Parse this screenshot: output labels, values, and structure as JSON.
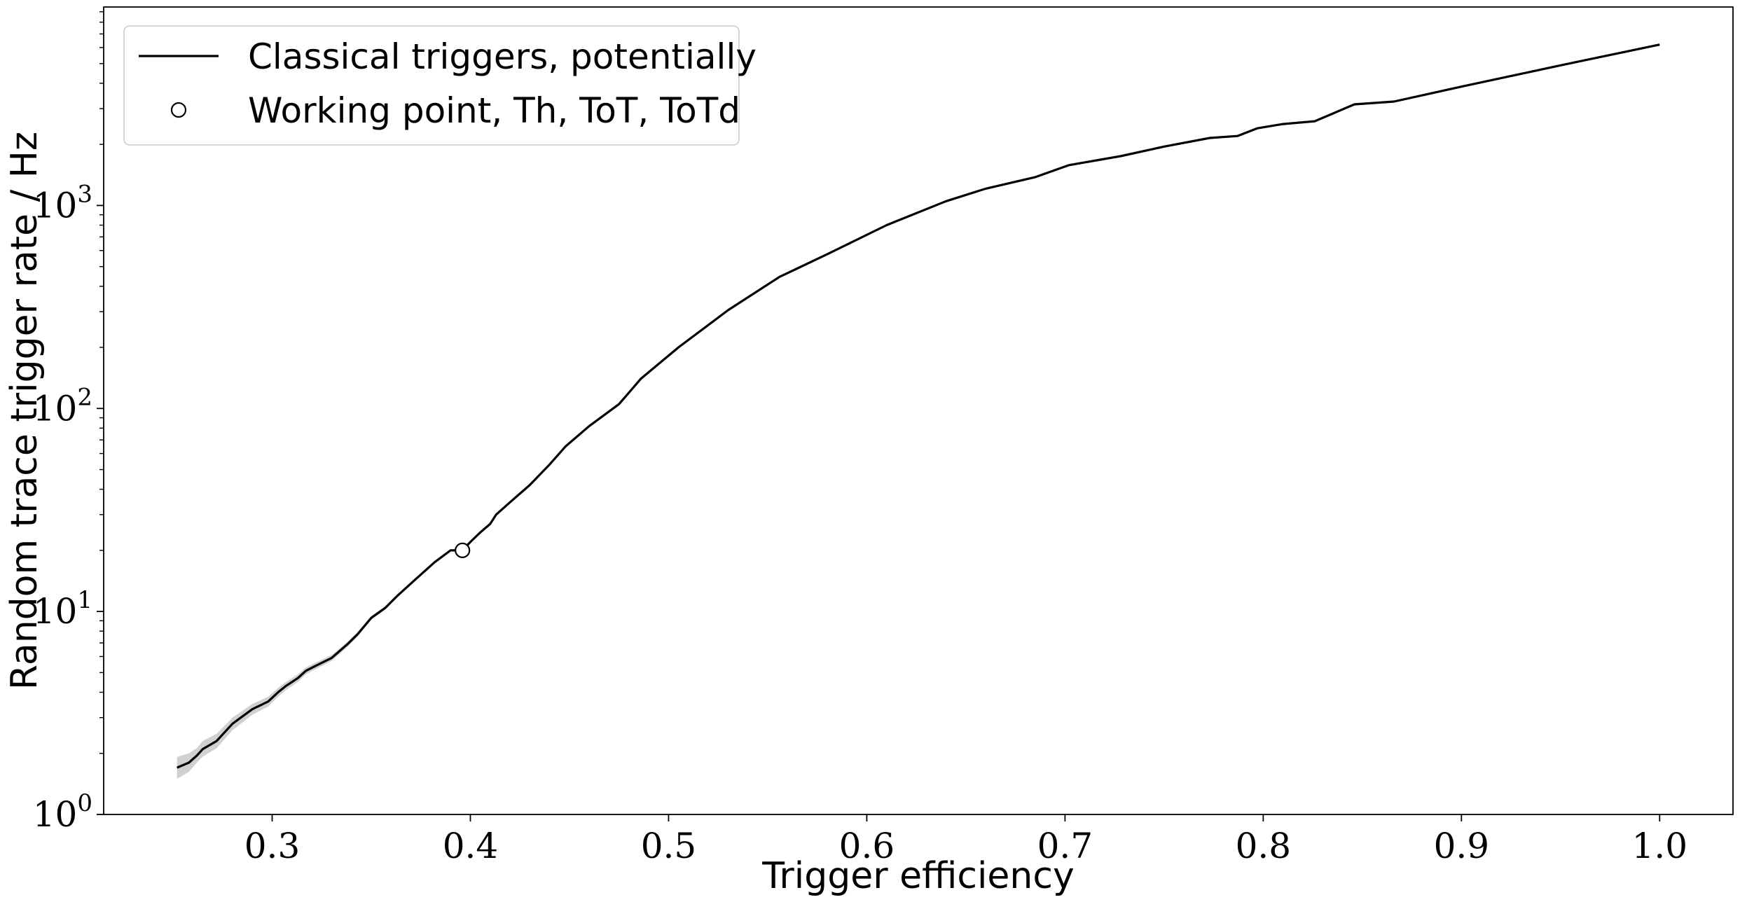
{
  "chart_data": {
    "type": "line",
    "xlabel": "Trigger efficiency",
    "ylabel": "Random trace trigger rate / Hz",
    "xlim": [
      0.215,
      1.037
    ],
    "ylim": [
      1,
      9500
    ],
    "yscale": "log",
    "grid": false,
    "legend_position": "top-left",
    "x_ticks": [
      {
        "value": 0.3,
        "label": "0.3"
      },
      {
        "value": 0.4,
        "label": "0.4"
      },
      {
        "value": 0.5,
        "label": "0.5"
      },
      {
        "value": 0.6,
        "label": "0.6"
      },
      {
        "value": 0.7,
        "label": "0.7"
      },
      {
        "value": 0.8,
        "label": "0.8"
      },
      {
        "value": 0.9,
        "label": "0.9"
      },
      {
        "value": 1.0,
        "label": "1.0"
      }
    ],
    "y_ticks": [
      {
        "value": 1,
        "base": "10",
        "exp": "0"
      },
      {
        "value": 10,
        "base": "10",
        "exp": "1"
      },
      {
        "value": 100,
        "base": "10",
        "exp": "2"
      },
      {
        "value": 1000,
        "base": "10",
        "exp": "3"
      }
    ],
    "series": [
      {
        "name": "Classical triggers, potentially",
        "color": "#000000",
        "style": "line",
        "x": [
          0.252,
          0.258,
          0.262,
          0.265,
          0.272,
          0.28,
          0.29,
          0.298,
          0.303,
          0.307,
          0.313,
          0.317,
          0.322,
          0.33,
          0.338,
          0.343,
          0.35,
          0.357,
          0.363,
          0.372,
          0.382,
          0.39,
          0.396,
          0.4,
          0.405,
          0.41,
          0.413,
          0.42,
          0.43,
          0.44,
          0.448,
          0.46,
          0.475,
          0.486,
          0.505,
          0.53,
          0.556,
          0.58,
          0.61,
          0.64,
          0.66,
          0.685,
          0.702,
          0.728,
          0.75,
          0.773,
          0.787,
          0.797,
          0.81,
          0.826,
          0.846,
          0.866,
          0.9,
          0.95,
          1.0
        ],
        "y": [
          1.7,
          1.8,
          1.95,
          2.1,
          2.3,
          2.8,
          3.3,
          3.6,
          4.0,
          4.3,
          4.7,
          5.1,
          5.4,
          5.9,
          6.9,
          7.7,
          9.3,
          10.4,
          11.9,
          14.3,
          17.5,
          20.0,
          20.0,
          22.0,
          24.5,
          27.0,
          30.0,
          34.5,
          42.0,
          53.0,
          65.0,
          82.0,
          105.0,
          140.0,
          200.0,
          305.0,
          445.0,
          575.0,
          800.0,
          1050.0,
          1210.0,
          1380.0,
          1580.0,
          1750.0,
          1950.0,
          2150.0,
          2200.0,
          2400.0,
          2520.0,
          2600.0,
          3150.0,
          3250.0,
          3850.0,
          4900.0,
          6200.0
        ],
        "band_lower": [
          1.5,
          1.62,
          1.8,
          1.93,
          2.12,
          2.6,
          3.1,
          3.4,
          3.8,
          4.1,
          4.5,
          4.9,
          5.2,
          5.7,
          6.7,
          7.5,
          9.1,
          10.2,
          11.7,
          14.1,
          17.3,
          19.8,
          19.8,
          21.8,
          24.3,
          26.8,
          29.8,
          34.3,
          41.8,
          52.8,
          64.8,
          81.8,
          104.8,
          139.8,
          199.8,
          304.8,
          444.8,
          574.8,
          799.8,
          1049.8,
          1209.8,
          1379.8,
          1579.8,
          1749.8,
          1949.8,
          2149.8,
          2199.8,
          2399.8,
          2519.8,
          2599.8,
          3149.8,
          3249.8,
          3849.8,
          4899.8,
          6199.8
        ],
        "band_upper": [
          1.92,
          2.0,
          2.12,
          2.3,
          2.5,
          3.0,
          3.5,
          3.8,
          4.2,
          4.5,
          4.9,
          5.3,
          5.6,
          6.1,
          7.1,
          7.9,
          9.5,
          10.6,
          12.1,
          14.5,
          17.7,
          20.2,
          20.2,
          22.2,
          24.7,
          27.2,
          30.2,
          34.7,
          42.2,
          53.2,
          65.2,
          82.2,
          105.2,
          140.2,
          200.2,
          305.2,
          445.2,
          575.2,
          800.2,
          1050.2,
          1210.2,
          1380.2,
          1580.2,
          1750.2,
          1950.2,
          2150.2,
          2200.2,
          2400.2,
          2520.2,
          2600.2,
          3150.2,
          3250.2,
          3850.2,
          4900.2,
          6200.2
        ],
        "band_color": "#d0d0d0"
      },
      {
        "name": "Working point, Th, ToT, ToTd",
        "color": "#000000",
        "style": "marker",
        "marker": "open-circle",
        "x": [
          0.396
        ],
        "y": [
          20.0
        ]
      }
    ]
  }
}
